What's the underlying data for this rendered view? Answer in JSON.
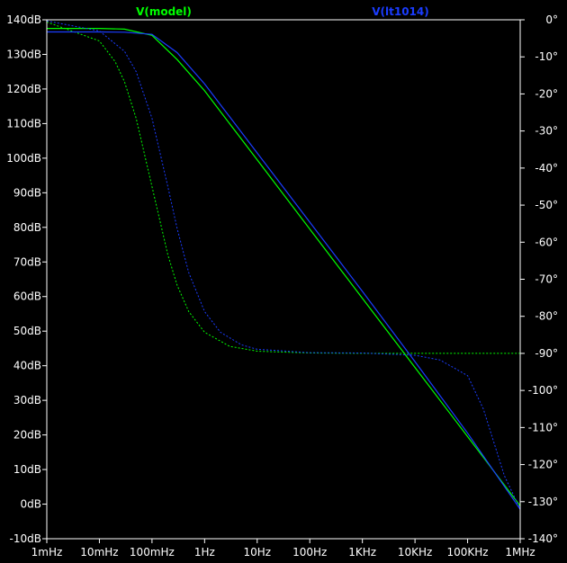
{
  "chart_data": {
    "type": "line",
    "title": "",
    "xlabel": "",
    "ylabel_left": "",
    "ylabel_right": "",
    "x_scale": "log",
    "x_range_hz": [
      0.001,
      1000000
    ],
    "y_left_range_db": [
      -10,
      140
    ],
    "y_right_range_deg": [
      -140,
      0
    ],
    "grid": false,
    "x_ticks": [
      {
        "label": "1mHz",
        "hz": 0.001
      },
      {
        "label": "10mHz",
        "hz": 0.01
      },
      {
        "label": "100mHz",
        "hz": 0.1
      },
      {
        "label": "1Hz",
        "hz": 1
      },
      {
        "label": "10Hz",
        "hz": 10
      },
      {
        "label": "100Hz",
        "hz": 100
      },
      {
        "label": "1KHz",
        "hz": 1000
      },
      {
        "label": "10KHz",
        "hz": 10000
      },
      {
        "label": "100KHz",
        "hz": 100000
      },
      {
        "label": "1MHz",
        "hz": 1000000
      }
    ],
    "y_left_ticks": [
      {
        "label": "140dB",
        "v": 140
      },
      {
        "label": "130dB",
        "v": 130
      },
      {
        "label": "120dB",
        "v": 120
      },
      {
        "label": "110dB",
        "v": 110
      },
      {
        "label": "100dB",
        "v": 100
      },
      {
        "label": "90dB",
        "v": 90
      },
      {
        "label": "80dB",
        "v": 80
      },
      {
        "label": "70dB",
        "v": 70
      },
      {
        "label": "60dB",
        "v": 60
      },
      {
        "label": "50dB",
        "v": 50
      },
      {
        "label": "40dB",
        "v": 40
      },
      {
        "label": "30dB",
        "v": 30
      },
      {
        "label": "20dB",
        "v": 20
      },
      {
        "label": "10dB",
        "v": 10
      },
      {
        "label": "0dB",
        "v": 0
      },
      {
        "label": "-10dB",
        "v": -10
      }
    ],
    "y_right_ticks": [
      {
        "label": "0°",
        "v": 0
      },
      {
        "label": "-10°",
        "v": -10
      },
      {
        "label": "-20°",
        "v": -20
      },
      {
        "label": "-30°",
        "v": -30
      },
      {
        "label": "-40°",
        "v": -40
      },
      {
        "label": "-50°",
        "v": -50
      },
      {
        "label": "-60°",
        "v": -60
      },
      {
        "label": "-70°",
        "v": -70
      },
      {
        "label": "-80°",
        "v": -80
      },
      {
        "label": "-90°",
        "v": -90
      },
      {
        "label": "-100°",
        "v": -100
      },
      {
        "label": "-110°",
        "v": -110
      },
      {
        "label": "-120°",
        "v": -120
      },
      {
        "label": "-130°",
        "v": -130
      },
      {
        "label": "-140°",
        "v": -140
      }
    ],
    "series": [
      {
        "name": "V(model)",
        "color": "#00ff00",
        "trace": "magnitude",
        "axis": "left",
        "style": "solid",
        "x": [
          0.001,
          0.01,
          0.03,
          0.1,
          0.3,
          1,
          10,
          100,
          1000,
          10000,
          100000,
          1000000
        ],
        "y": [
          137.5,
          137.5,
          137.3,
          135.5,
          128.5,
          119.5,
          99.5,
          79.5,
          59.5,
          39.5,
          19.5,
          -0.5
        ]
      },
      {
        "name": "V(model)",
        "color": "#00ff00",
        "trace": "phase",
        "axis": "right",
        "style": "dashed",
        "x": [
          0.001,
          0.01,
          0.02,
          0.03,
          0.05,
          0.1,
          0.2,
          0.3,
          0.5,
          1,
          3,
          10,
          100,
          1000,
          10000,
          100000,
          1000000
        ],
        "y": [
          -0.6,
          -5.7,
          -11.3,
          -16.7,
          -26.6,
          -45,
          -63.4,
          -71.6,
          -78.7,
          -84.3,
          -88.1,
          -89.4,
          -89.9,
          -90,
          -90,
          -90,
          -90
        ]
      },
      {
        "name": "V(lt1014)",
        "color": "#1a3cff",
        "trace": "magnitude",
        "axis": "left",
        "style": "solid",
        "x": [
          0.001,
          0.01,
          0.03,
          0.1,
          0.3,
          1,
          10,
          100,
          1000,
          10000,
          100000,
          1000000
        ],
        "y": [
          136.5,
          136.5,
          136.4,
          135.8,
          130.5,
          121.5,
          101.5,
          81.5,
          61.5,
          41.2,
          20.5,
          -1.5
        ]
      },
      {
        "name": "V(lt1014)",
        "color": "#1a3cff",
        "trace": "phase",
        "axis": "right",
        "style": "dashed",
        "x": [
          0.001,
          0.01,
          0.03,
          0.05,
          0.1,
          0.2,
          0.3,
          0.5,
          1,
          2,
          5,
          10,
          100,
          1000,
          10000,
          30000,
          100000,
          200000,
          500000,
          1000000
        ],
        "y": [
          -0.3,
          -3,
          -8.5,
          -14,
          -26.6,
          -45,
          -56.3,
          -68.2,
          -78.7,
          -84.3,
          -87.7,
          -88.9,
          -89.8,
          -89.9,
          -90.5,
          -91.8,
          -96,
          -105,
          -123,
          -132
        ]
      }
    ]
  }
}
